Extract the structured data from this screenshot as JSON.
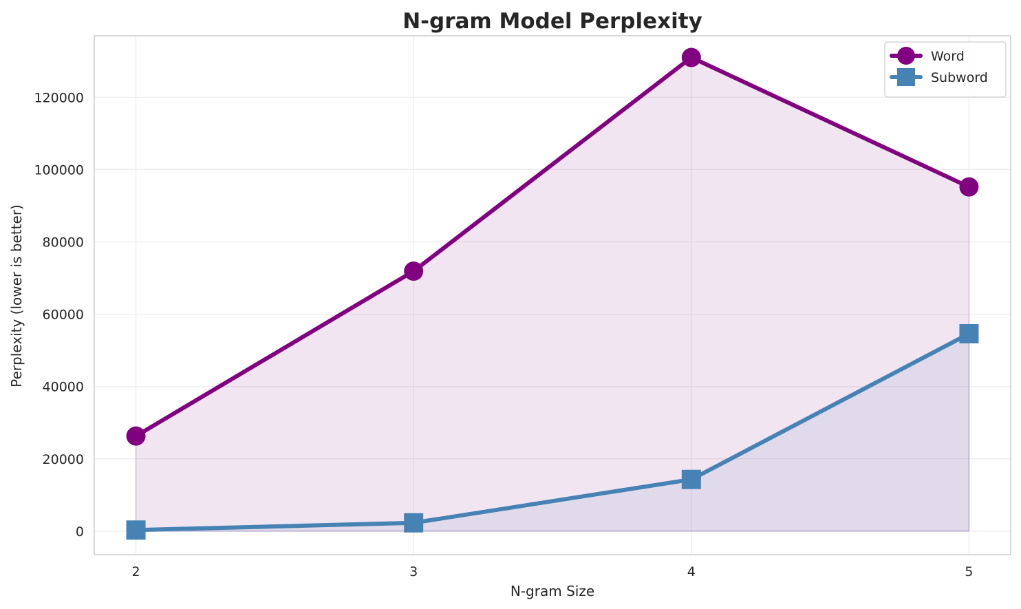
{
  "chart_data": {
    "type": "line",
    "title": "N-gram Model Perplexity",
    "xlabel": "N-gram Size",
    "ylabel": "Perplexity (lower is better)",
    "x": [
      2,
      3,
      4,
      5
    ],
    "x_tick_labels": [
      "2",
      "3",
      "4",
      "5"
    ],
    "xlim": [
      1.85,
      5.15
    ],
    "ylim": [
      -6500,
      137000
    ],
    "y_ticks": [
      0,
      20000,
      40000,
      60000,
      80000,
      100000,
      120000
    ],
    "y_tick_labels": [
      "0",
      "20000",
      "40000",
      "60000",
      "80000",
      "100000",
      "120000"
    ],
    "grid": true,
    "legend_position": "top-right",
    "area_fill": true,
    "series": [
      {
        "name": "Word",
        "values": [
          26300,
          71900,
          131000,
          95200
        ],
        "color": "#800080",
        "marker": "circle"
      },
      {
        "name": "Subword",
        "values": [
          300,
          2300,
          14300,
          54600
        ],
        "color": "#4682b4",
        "marker": "square"
      }
    ]
  }
}
